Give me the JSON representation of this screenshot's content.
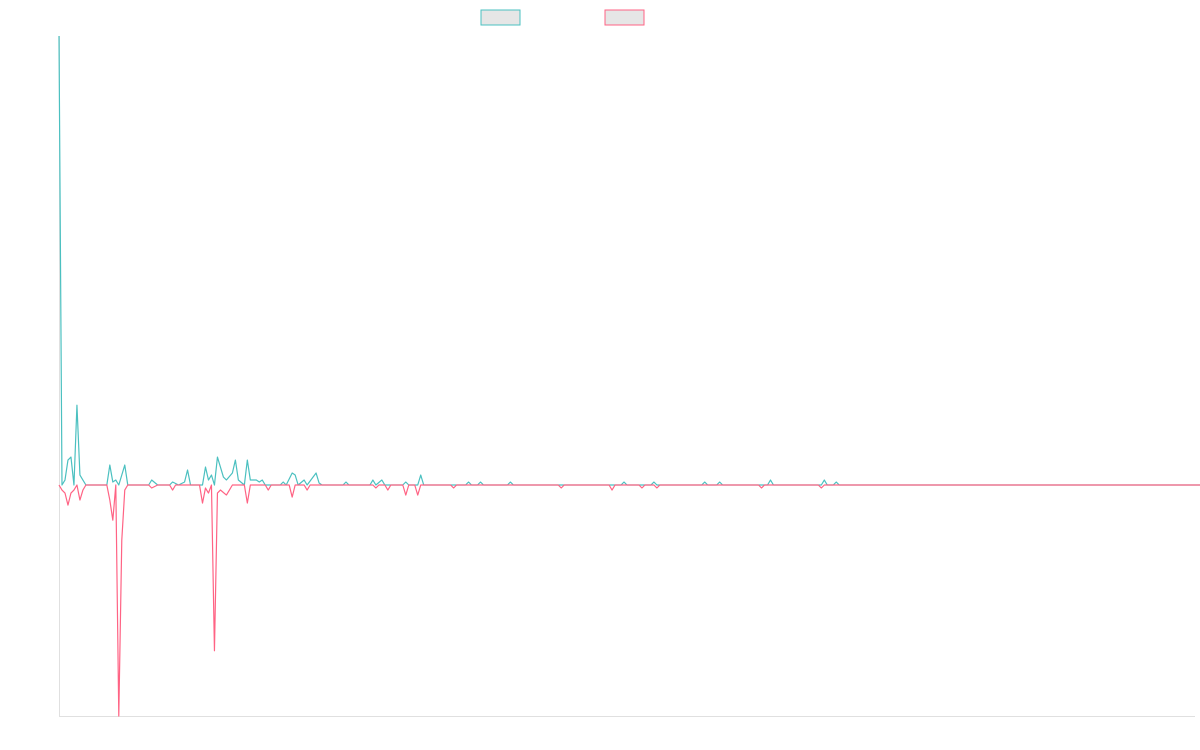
{
  "colors": {
    "series_a": "#4bc0c0",
    "series_b": "#ff6384",
    "legend_fill": "#e6e6e6",
    "axis": "#e0e0e0",
    "background": "#ffffff"
  },
  "chart_data": {
    "type": "line",
    "title": "",
    "xlabel": "",
    "ylabel": "",
    "grid": false,
    "legend_position": "top-center",
    "x_range": [
      0,
      380
    ],
    "ylim": [
      -230,
      450
    ],
    "baseline": 0,
    "series": [
      {
        "color": "#4bc0c0",
        "direction": "up",
        "points": [
          [
            0,
            450
          ],
          [
            1,
            0
          ],
          [
            2,
            5
          ],
          [
            3,
            25
          ],
          [
            4,
            28
          ],
          [
            5,
            0
          ],
          [
            6,
            80
          ],
          [
            7,
            10
          ],
          [
            8,
            5
          ],
          [
            9,
            0
          ],
          [
            12,
            0
          ],
          [
            16,
            0
          ],
          [
            17,
            20
          ],
          [
            18,
            3
          ],
          [
            19,
            5
          ],
          [
            20,
            0
          ],
          [
            22,
            20
          ],
          [
            23,
            0
          ],
          [
            30,
            0
          ],
          [
            31,
            5
          ],
          [
            33,
            0
          ],
          [
            37,
            0
          ],
          [
            38,
            3
          ],
          [
            40,
            0
          ],
          [
            42,
            3
          ],
          [
            43,
            15
          ],
          [
            44,
            0
          ],
          [
            48,
            0
          ],
          [
            49,
            18
          ],
          [
            50,
            5
          ],
          [
            51,
            10
          ],
          [
            52,
            0
          ],
          [
            53,
            28
          ],
          [
            54,
            18
          ],
          [
            55,
            8
          ],
          [
            56,
            5
          ],
          [
            58,
            12
          ],
          [
            59,
            25
          ],
          [
            60,
            5
          ],
          [
            62,
            0
          ],
          [
            63,
            25
          ],
          [
            64,
            5
          ],
          [
            66,
            5
          ],
          [
            67,
            3
          ],
          [
            68,
            5
          ],
          [
            69,
            0
          ],
          [
            74,
            0
          ],
          [
            75,
            3
          ],
          [
            76,
            0
          ],
          [
            78,
            12
          ],
          [
            79,
            10
          ],
          [
            80,
            0
          ],
          [
            82,
            5
          ],
          [
            83,
            0
          ],
          [
            86,
            12
          ],
          [
            87,
            2
          ],
          [
            88,
            0
          ],
          [
            95,
            0
          ],
          [
            96,
            3
          ],
          [
            97,
            0
          ],
          [
            104,
            0
          ],
          [
            105,
            5
          ],
          [
            106,
            0
          ],
          [
            108,
            5
          ],
          [
            109,
            0
          ],
          [
            115,
            0
          ],
          [
            116,
            3
          ],
          [
            117,
            0
          ],
          [
            120,
            0
          ],
          [
            121,
            10
          ],
          [
            122,
            0
          ],
          [
            136,
            0
          ],
          [
            137,
            3
          ],
          [
            138,
            0
          ],
          [
            140,
            0
          ],
          [
            141,
            3
          ],
          [
            142,
            0
          ],
          [
            150,
            0
          ],
          [
            151,
            3
          ],
          [
            152,
            0
          ],
          [
            188,
            0
          ],
          [
            189,
            3
          ],
          [
            190,
            0
          ],
          [
            198,
            0
          ],
          [
            199,
            3
          ],
          [
            200,
            0
          ],
          [
            215,
            0
          ],
          [
            216,
            3
          ],
          [
            217,
            0
          ],
          [
            220,
            0
          ],
          [
            221,
            3
          ],
          [
            222,
            0
          ],
          [
            237,
            0
          ],
          [
            238,
            5
          ],
          [
            239,
            0
          ],
          [
            255,
            0
          ],
          [
            256,
            5
          ],
          [
            257,
            0
          ],
          [
            259,
            0
          ],
          [
            260,
            3
          ],
          [
            261,
            0
          ],
          [
            385,
            0
          ]
        ]
      },
      {
        "color": "#ff6384",
        "direction": "down",
        "points": [
          [
            0,
            0
          ],
          [
            1,
            5
          ],
          [
            2,
            8
          ],
          [
            3,
            20
          ],
          [
            4,
            8
          ],
          [
            5,
            5
          ],
          [
            6,
            0
          ],
          [
            7,
            15
          ],
          [
            8,
            5
          ],
          [
            9,
            0
          ],
          [
            16,
            0
          ],
          [
            17,
            15
          ],
          [
            18,
            35
          ],
          [
            19,
            0
          ],
          [
            20,
            230
          ],
          [
            21,
            55
          ],
          [
            22,
            5
          ],
          [
            23,
            0
          ],
          [
            30,
            0
          ],
          [
            31,
            3
          ],
          [
            33,
            0
          ],
          [
            37,
            0
          ],
          [
            38,
            5
          ],
          [
            39,
            0
          ],
          [
            47,
            0
          ],
          [
            48,
            18
          ],
          [
            49,
            3
          ],
          [
            50,
            8
          ],
          [
            51,
            0
          ],
          [
            52,
            165
          ],
          [
            53,
            8
          ],
          [
            54,
            5
          ],
          [
            56,
            10
          ],
          [
            57,
            5
          ],
          [
            58,
            0
          ],
          [
            62,
            0
          ],
          [
            63,
            18
          ],
          [
            64,
            0
          ],
          [
            69,
            0
          ],
          [
            70,
            5
          ],
          [
            71,
            0
          ],
          [
            77,
            0
          ],
          [
            78,
            12
          ],
          [
            79,
            0
          ],
          [
            82,
            0
          ],
          [
            83,
            5
          ],
          [
            84,
            0
          ],
          [
            105,
            0
          ],
          [
            106,
            3
          ],
          [
            107,
            0
          ],
          [
            109,
            0
          ],
          [
            110,
            5
          ],
          [
            111,
            0
          ],
          [
            115,
            0
          ],
          [
            116,
            10
          ],
          [
            117,
            0
          ],
          [
            119,
            0
          ],
          [
            120,
            10
          ],
          [
            121,
            0
          ],
          [
            131,
            0
          ],
          [
            132,
            3
          ],
          [
            133,
            0
          ],
          [
            167,
            0
          ],
          [
            168,
            3
          ],
          [
            169,
            0
          ],
          [
            184,
            0
          ],
          [
            185,
            5
          ],
          [
            186,
            0
          ],
          [
            194,
            0
          ],
          [
            195,
            3
          ],
          [
            196,
            0
          ],
          [
            199,
            0
          ],
          [
            200,
            3
          ],
          [
            201,
            0
          ],
          [
            234,
            0
          ],
          [
            235,
            3
          ],
          [
            236,
            0
          ],
          [
            254,
            0
          ],
          [
            255,
            3
          ],
          [
            256,
            0
          ],
          [
            385,
            0
          ]
        ]
      }
    ]
  }
}
